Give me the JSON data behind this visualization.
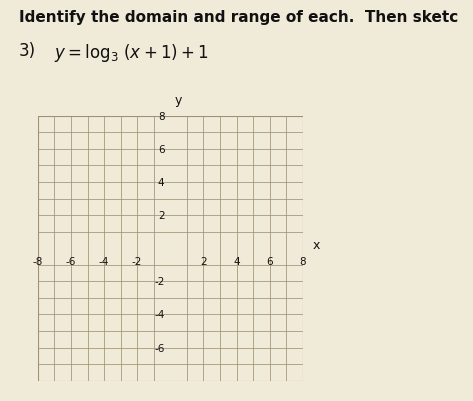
{
  "title_line1": "Identify the domain and range of each.  Then sketc",
  "background_color": "#f0ead8",
  "grid_color": "#a09070",
  "axis_color": "#222222",
  "text_color": "#111111",
  "x_min": -8,
  "x_max": 8,
  "y_min": -8,
  "y_max": 8,
  "x_ticks": [
    -8,
    -6,
    -4,
    -2,
    2,
    4,
    6,
    8
  ],
  "y_ticks": [
    -6,
    -4,
    -2,
    2,
    4,
    6,
    8
  ],
  "tick_fontsize": 7.5,
  "title_fontsize": 11,
  "eq_fontsize": 12
}
